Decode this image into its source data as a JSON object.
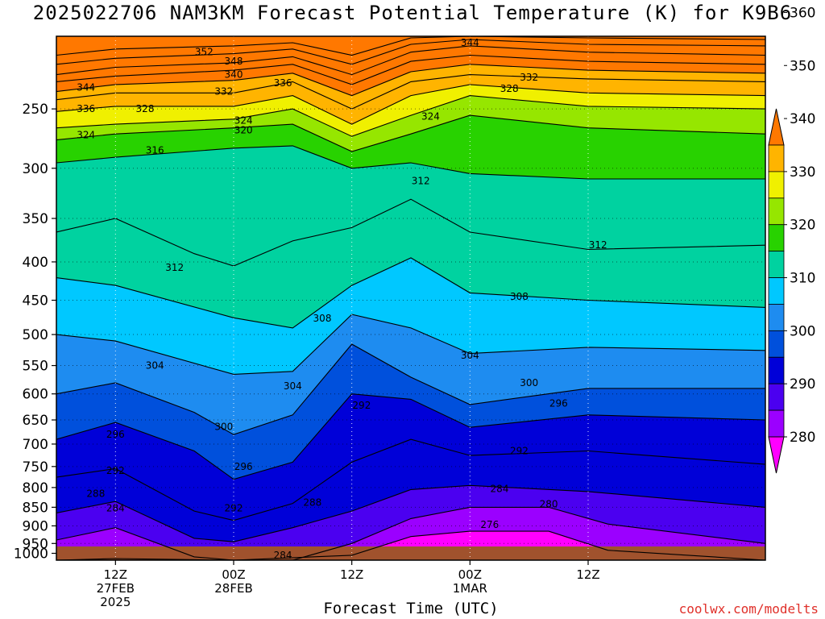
{
  "title": "2025022706 NAM3KM Forecast Potential Temperature (K) for K9B6",
  "xlabel": "Forecast Time (UTC)",
  "credit": "coolwx.com/modelts",
  "colors": {
    "ground": "#a0522d",
    "bins": [
      "#ff00ff",
      "#9b00ff",
      "#4b00f0",
      "#0000d8",
      "#0050dc",
      "#1e8cf0",
      "#00c8ff",
      "#00d2a0",
      "#28d200",
      "#96e600",
      "#f0f000",
      "#ffb400",
      "#ff7800"
    ]
  },
  "chart_data": {
    "type": "heatmap",
    "title": "2025022706 NAM3KM Forecast Potential Temperature (K) for K9B6",
    "xlabel": "Forecast Time (UTC)",
    "ylabel": "",
    "y_scale": "log",
    "y_reversed": true,
    "ylim": [
      1000,
      200
    ],
    "yticks": [
      250,
      300,
      350,
      400,
      450,
      500,
      550,
      600,
      650,
      700,
      750,
      800,
      850,
      900,
      950,
      1000
    ],
    "xlim": [
      "2025-02-27T06Z",
      "2025-03-02T06Z"
    ],
    "xticks": [
      {
        "time": "2025-02-27T12Z",
        "lines": [
          "12Z",
          "27FEB",
          "2025"
        ]
      },
      {
        "time": "2025-02-28T00Z",
        "lines": [
          "00Z",
          "28FEB"
        ]
      },
      {
        "time": "2025-02-28T12Z",
        "lines": [
          "12Z"
        ]
      },
      {
        "time": "2025-03-01T00Z",
        "lines": [
          "00Z",
          "1MAR"
        ]
      },
      {
        "time": "2025-03-01T12Z",
        "lines": [
          "12Z"
        ]
      }
    ],
    "colorbar": {
      "levels": [
        280,
        290,
        300,
        310,
        320,
        330,
        340,
        350,
        360
      ],
      "step": 5,
      "extend": "both"
    },
    "grid": true,
    "contour_interval": 4,
    "isentropes": [
      {
        "theta": 280,
        "points": [
          [
            "2025-02-27T06Z",
            1000
          ],
          [
            "2025-02-27T12Z",
            995
          ],
          [
            "2025-02-28T00Z",
            1000
          ],
          [
            "2025-02-28T12Z",
            985
          ],
          [
            "2025-02-28T18Z",
            930
          ],
          [
            "2025-03-01T00Z",
            915
          ],
          [
            "2025-03-01T08Z",
            915
          ],
          [
            "2025-03-01T14Z",
            970
          ],
          [
            "2025-03-02T06Z",
            1000
          ]
        ]
      },
      {
        "theta": 284,
        "points": [
          [
            "2025-02-27T06Z",
            940
          ],
          [
            "2025-02-27T12Z",
            905
          ],
          [
            "2025-02-27T20Z",
            990
          ],
          [
            "2025-02-28T00Z",
            1000
          ],
          [
            "2025-02-28T06Z",
            1000
          ],
          [
            "2025-02-28T12Z",
            950
          ],
          [
            "2025-02-28T18Z",
            880
          ],
          [
            "2025-03-01T00Z",
            850
          ],
          [
            "2025-03-01T08Z",
            850
          ],
          [
            "2025-03-01T14Z",
            895
          ],
          [
            "2025-03-02T06Z",
            950
          ]
        ]
      },
      {
        "theta": 288,
        "points": [
          [
            "2025-02-27T06Z",
            865
          ],
          [
            "2025-02-27T12Z",
            835
          ],
          [
            "2025-02-27T20Z",
            935
          ],
          [
            "2025-02-28T00Z",
            945
          ],
          [
            "2025-02-28T06Z",
            905
          ],
          [
            "2025-02-28T12Z",
            860
          ],
          [
            "2025-02-28T18Z",
            805
          ],
          [
            "2025-03-01T00Z",
            795
          ],
          [
            "2025-03-01T12Z",
            810
          ],
          [
            "2025-03-02T06Z",
            850
          ]
        ]
      },
      {
        "theta": 292,
        "points": [
          [
            "2025-02-27T06Z",
            775
          ],
          [
            "2025-02-27T12Z",
            755
          ],
          [
            "2025-02-27T20Z",
            860
          ],
          [
            "2025-02-28T00Z",
            885
          ],
          [
            "2025-02-28T06Z",
            840
          ],
          [
            "2025-02-28T12Z",
            740
          ],
          [
            "2025-02-28T18Z",
            690
          ],
          [
            "2025-03-01T00Z",
            725
          ],
          [
            "2025-03-01T12Z",
            715
          ],
          [
            "2025-03-02T06Z",
            745
          ]
        ]
      },
      {
        "theta": 296,
        "points": [
          [
            "2025-02-27T06Z",
            690
          ],
          [
            "2025-02-27T12Z",
            655
          ],
          [
            "2025-02-27T20Z",
            715
          ],
          [
            "2025-02-28T00Z",
            780
          ],
          [
            "2025-02-28T06Z",
            740
          ],
          [
            "2025-02-28T12Z",
            600
          ],
          [
            "2025-02-28T18Z",
            610
          ],
          [
            "2025-03-01T00Z",
            665
          ],
          [
            "2025-03-01T12Z",
            640
          ],
          [
            "2025-03-02T06Z",
            650
          ]
        ]
      },
      {
        "theta": 300,
        "points": [
          [
            "2025-02-27T06Z",
            600
          ],
          [
            "2025-02-27T12Z",
            580
          ],
          [
            "2025-02-27T20Z",
            635
          ],
          [
            "2025-02-28T00Z",
            680
          ],
          [
            "2025-02-28T06Z",
            640
          ],
          [
            "2025-02-28T12Z",
            515
          ],
          [
            "2025-02-28T18Z",
            570
          ],
          [
            "2025-03-01T00Z",
            620
          ],
          [
            "2025-03-01T12Z",
            590
          ],
          [
            "2025-03-02T06Z",
            590
          ]
        ]
      },
      {
        "theta": 304,
        "points": [
          [
            "2025-02-27T06Z",
            500
          ],
          [
            "2025-02-27T12Z",
            510
          ],
          [
            "2025-02-28T00Z",
            565
          ],
          [
            "2025-02-28T06Z",
            560
          ],
          [
            "2025-02-28T12Z",
            470
          ],
          [
            "2025-02-28T18Z",
            490
          ],
          [
            "2025-03-01T00Z",
            530
          ],
          [
            "2025-03-01T12Z",
            520
          ],
          [
            "2025-03-02T06Z",
            525
          ]
        ]
      },
      {
        "theta": 308,
        "points": [
          [
            "2025-02-27T06Z",
            420
          ],
          [
            "2025-02-27T12Z",
            430
          ],
          [
            "2025-02-28T00Z",
            475
          ],
          [
            "2025-02-28T06Z",
            490
          ],
          [
            "2025-02-28T12Z",
            430
          ],
          [
            "2025-02-28T18Z",
            395
          ],
          [
            "2025-03-01T00Z",
            440
          ],
          [
            "2025-03-01T12Z",
            450
          ],
          [
            "2025-03-02T06Z",
            460
          ]
        ]
      },
      {
        "theta": 312,
        "points": [
          [
            "2025-02-27T06Z",
            365
          ],
          [
            "2025-02-27T12Z",
            350
          ],
          [
            "2025-02-27T20Z",
            390
          ],
          [
            "2025-02-28T00Z",
            405
          ],
          [
            "2025-02-28T06Z",
            375
          ],
          [
            "2025-02-28T12Z",
            360
          ],
          [
            "2025-02-28T18Z",
            330
          ],
          [
            "2025-03-01T00Z",
            365
          ],
          [
            "2025-03-01T12Z",
            385
          ],
          [
            "2025-03-02T06Z",
            380
          ]
        ]
      },
      {
        "theta": 316,
        "points": [
          [
            "2025-02-27T06Z",
            295
          ],
          [
            "2025-02-27T12Z",
            290
          ],
          [
            "2025-02-28T00Z",
            282
          ],
          [
            "2025-02-28T06Z",
            280
          ],
          [
            "2025-02-28T12Z",
            300
          ],
          [
            "2025-02-28T18Z",
            295
          ],
          [
            "2025-03-01T00Z",
            305
          ],
          [
            "2025-03-01T12Z",
            310
          ],
          [
            "2025-03-02T06Z",
            310
          ]
        ]
      },
      {
        "theta": 320,
        "points": [
          [
            "2025-02-27T06Z",
            275
          ],
          [
            "2025-02-27T12Z",
            270
          ],
          [
            "2025-02-28T00Z",
            265
          ],
          [
            "2025-02-28T06Z",
            262
          ],
          [
            "2025-02-28T12Z",
            285
          ],
          [
            "2025-02-28T18Z",
            270
          ],
          [
            "2025-03-01T00Z",
            255
          ],
          [
            "2025-03-01T12Z",
            265
          ],
          [
            "2025-03-02T06Z",
            270
          ]
        ]
      },
      {
        "theta": 324,
        "points": [
          [
            "2025-02-27T06Z",
            265
          ],
          [
            "2025-02-27T12Z",
            262
          ],
          [
            "2025-02-28T00Z",
            258
          ],
          [
            "2025-02-28T06Z",
            250
          ],
          [
            "2025-02-28T12Z",
            272
          ],
          [
            "2025-02-28T18Z",
            255
          ],
          [
            "2025-03-01T00Z",
            240
          ],
          [
            "2025-03-01T12Z",
            248
          ],
          [
            "2025-03-02T06Z",
            250
          ]
        ]
      },
      {
        "theta": 328,
        "points": [
          [
            "2025-02-27T06Z",
            252
          ],
          [
            "2025-02-27T12Z",
            248
          ],
          [
            "2025-02-28T00Z",
            248
          ],
          [
            "2025-02-28T06Z",
            240
          ],
          [
            "2025-02-28T12Z",
            262
          ],
          [
            "2025-02-28T18Z",
            240
          ],
          [
            "2025-03-01T00Z",
            232
          ],
          [
            "2025-03-01T12Z",
            238
          ],
          [
            "2025-03-02T06Z",
            240
          ]
        ]
      },
      {
        "theta": 332,
        "points": [
          [
            "2025-02-27T06Z",
            243
          ],
          [
            "2025-02-27T12Z",
            238
          ],
          [
            "2025-02-28T00Z",
            238
          ],
          [
            "2025-02-28T06Z",
            230
          ],
          [
            "2025-02-28T12Z",
            250
          ],
          [
            "2025-02-28T18Z",
            230
          ],
          [
            "2025-03-01T00Z",
            225
          ],
          [
            "2025-03-01T12Z",
            228
          ],
          [
            "2025-03-02T06Z",
            230
          ]
        ]
      },
      {
        "theta": 336,
        "points": [
          [
            "2025-02-27T06Z",
            237
          ],
          [
            "2025-02-27T12Z",
            232
          ],
          [
            "2025-02-28T00Z",
            229
          ],
          [
            "2025-02-28T06Z",
            224
          ],
          [
            "2025-02-28T12Z",
            240
          ],
          [
            "2025-02-28T18Z",
            223
          ],
          [
            "2025-03-01T00Z",
            218
          ],
          [
            "2025-03-01T12Z",
            222
          ],
          [
            "2025-03-02T06Z",
            224
          ]
        ]
      },
      {
        "theta": 340,
        "points": [
          [
            "2025-02-27T06Z",
            230
          ],
          [
            "2025-02-27T12Z",
            226
          ],
          [
            "2025-02-28T00Z",
            222
          ],
          [
            "2025-02-28T06Z",
            218
          ],
          [
            "2025-02-28T12Z",
            232
          ],
          [
            "2025-02-28T18Z",
            216
          ],
          [
            "2025-03-01T00Z",
            212
          ],
          [
            "2025-03-01T12Z",
            216
          ],
          [
            "2025-03-02T06Z",
            218
          ]
        ]
      },
      {
        "theta": 344,
        "points": [
          [
            "2025-02-27T06Z",
            225
          ],
          [
            "2025-02-27T12Z",
            220
          ],
          [
            "2025-02-28T00Z",
            217
          ],
          [
            "2025-02-28T06Z",
            213
          ],
          [
            "2025-02-28T12Z",
            225
          ],
          [
            "2025-02-28T18Z",
            210
          ],
          [
            "2025-03-01T00Z",
            206
          ],
          [
            "2025-03-01T12Z",
            210
          ],
          [
            "2025-03-02T06Z",
            212
          ]
        ]
      },
      {
        "theta": 348,
        "points": [
          [
            "2025-02-27T06Z",
            218
          ],
          [
            "2025-02-27T12Z",
            214
          ],
          [
            "2025-02-28T00Z",
            211
          ],
          [
            "2025-02-28T06Z",
            208
          ],
          [
            "2025-02-28T12Z",
            218
          ],
          [
            "2025-02-28T18Z",
            205
          ],
          [
            "2025-03-01T00Z",
            202
          ],
          [
            "2025-03-01T12Z",
            205
          ],
          [
            "2025-03-02T06Z",
            206
          ]
        ]
      },
      {
        "theta": 352,
        "points": [
          [
            "2025-02-27T06Z",
            212
          ],
          [
            "2025-02-27T12Z",
            208
          ],
          [
            "2025-02-28T00Z",
            206
          ],
          [
            "2025-02-28T06Z",
            204
          ],
          [
            "2025-02-28T12Z",
            212
          ],
          [
            "2025-02-28T18Z",
            201
          ],
          [
            "2025-03-01T00Z",
            200
          ],
          [
            "2025-03-01T12Z",
            201
          ],
          [
            "2025-03-02T06Z",
            202
          ]
        ]
      }
    ],
    "contour_labels": [
      {
        "text": "352",
        "time": "2025-02-27T21Z",
        "p": 210
      },
      {
        "text": "348",
        "time": "2025-02-28T00Z",
        "p": 216
      },
      {
        "text": "340",
        "time": "2025-02-28T00Z",
        "p": 225
      },
      {
        "text": "344",
        "time": "2025-03-01T00Z",
        "p": 204
      },
      {
        "text": "332",
        "time": "2025-03-01T06Z",
        "p": 227
      },
      {
        "text": "328",
        "time": "2025-03-01T04Z",
        "p": 235
      },
      {
        "text": "344",
        "time": "2025-02-27T09Z",
        "p": 234
      },
      {
        "text": "336",
        "time": "2025-02-27T09Z",
        "p": 250
      },
      {
        "text": "328",
        "time": "2025-02-27T15Z",
        "p": 250
      },
      {
        "text": "332",
        "time": "2025-02-27T23Z",
        "p": 237
      },
      {
        "text": "336",
        "time": "2025-02-28T05Z",
        "p": 231
      },
      {
        "text": "324",
        "time": "2025-02-28T01Z",
        "p": 259
      },
      {
        "text": "320",
        "time": "2025-02-28T01Z",
        "p": 267
      },
      {
        "text": "324",
        "time": "2025-02-28T20Z",
        "p": 256
      },
      {
        "text": "324",
        "time": "2025-02-27T09Z",
        "p": 271
      },
      {
        "text": "316",
        "time": "2025-02-27T16Z",
        "p": 284
      },
      {
        "text": "312",
        "time": "2025-02-28T19Z",
        "p": 312
      },
      {
        "text": "312",
        "time": "2025-03-01T13Z",
        "p": 380
      },
      {
        "text": "312",
        "time": "2025-02-27T18Z",
        "p": 407
      },
      {
        "text": "308",
        "time": "2025-02-28T09Z",
        "p": 476
      },
      {
        "text": "308",
        "time": "2025-03-01T05Z",
        "p": 445
      },
      {
        "text": "304",
        "time": "2025-02-27T16Z",
        "p": 550
      },
      {
        "text": "304",
        "time": "2025-02-28T06Z",
        "p": 586
      },
      {
        "text": "304",
        "time": "2025-03-01T00Z",
        "p": 533
      },
      {
        "text": "300",
        "time": "2025-03-01T06Z",
        "p": 580
      },
      {
        "text": "296",
        "time": "2025-03-01T09Z",
        "p": 618
      },
      {
        "text": "292",
        "time": "2025-02-28T13Z",
        "p": 622
      },
      {
        "text": "300",
        "time": "2025-02-27T23Z",
        "p": 664
      },
      {
        "text": "296",
        "time": "2025-02-27T12Z",
        "p": 680
      },
      {
        "text": "296",
        "time": "2025-02-28T01Z",
        "p": 750
      },
      {
        "text": "292",
        "time": "2025-03-01T05Z",
        "p": 715
      },
      {
        "text": "292",
        "time": "2025-02-27T12Z",
        "p": 760
      },
      {
        "text": "288",
        "time": "2025-02-27T10Z",
        "p": 815
      },
      {
        "text": "284",
        "time": "2025-03-01T03Z",
        "p": 803
      },
      {
        "text": "284",
        "time": "2025-02-27T12Z",
        "p": 852
      },
      {
        "text": "292",
        "time": "2025-02-28T00Z",
        "p": 852
      },
      {
        "text": "288",
        "time": "2025-02-28T08Z",
        "p": 838
      },
      {
        "text": "280",
        "time": "2025-03-01T08Z",
        "p": 842
      },
      {
        "text": "276",
        "time": "2025-03-01T02Z",
        "p": 897
      },
      {
        "text": "284",
        "time": "2025-02-28T05Z",
        "p": 985
      }
    ]
  }
}
